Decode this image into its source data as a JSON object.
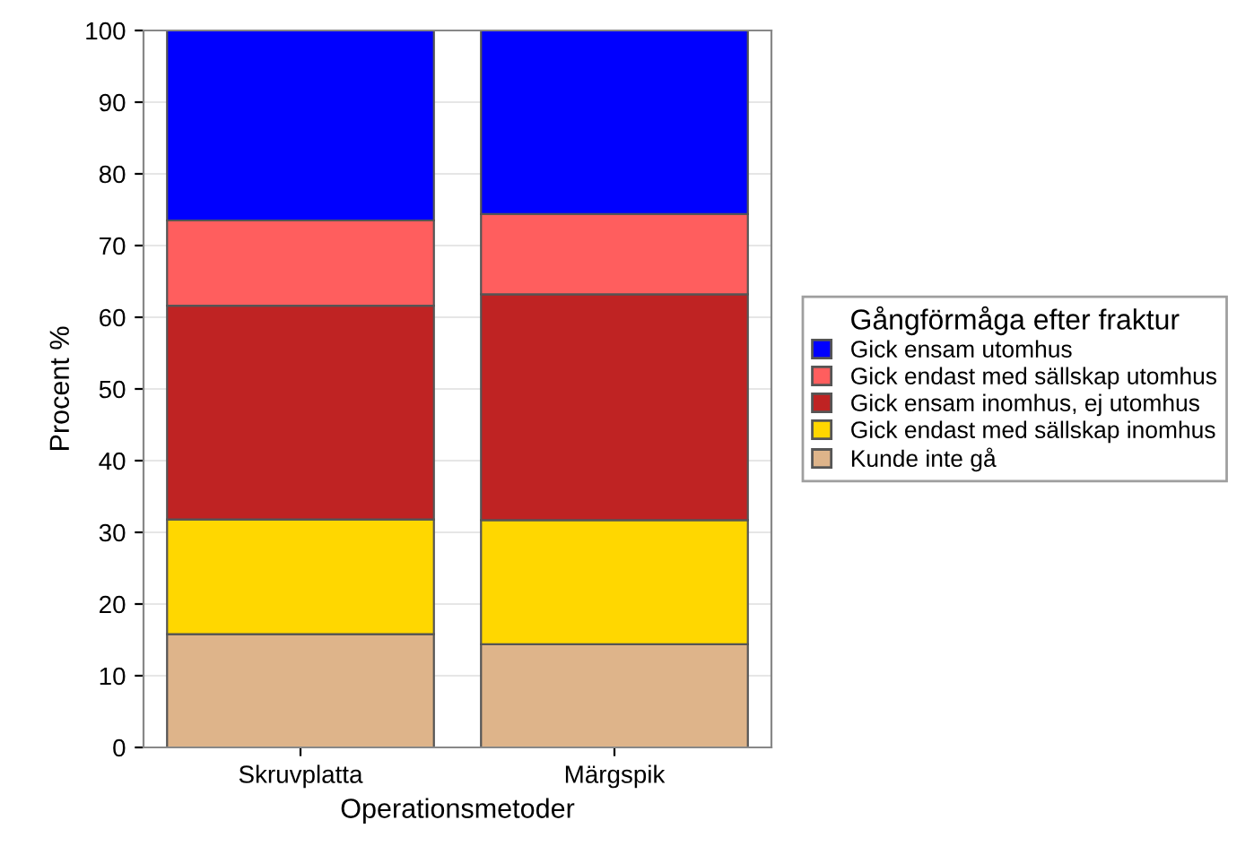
{
  "chart_data": {
    "type": "bar",
    "stacked": true,
    "xlabel": "Operationsmetoder",
    "ylabel": "Procent %",
    "legend_title": "Gångförmåga efter fraktur",
    "categories": [
      "Skruvplatta",
      "Märgspik"
    ],
    "series": [
      {
        "name": "Kunde inte gå",
        "color": "#deb48a",
        "values": [
          15.8,
          14.4
        ]
      },
      {
        "name": "Gick endast med sällskap inomhus",
        "color": "#ffd700",
        "values": [
          16.0,
          17.3
        ]
      },
      {
        "name": "Gick ensam inomhus, ej utomhus",
        "color": "#bf2323",
        "values": [
          29.8,
          31.5
        ]
      },
      {
        "name": "Gick endast med sällskap utomhus",
        "color": "#ff5e5e",
        "values": [
          11.9,
          11.2
        ]
      },
      {
        "name": "Gick ensam utomhus",
        "color": "#0000ff",
        "values": [
          26.5,
          25.6
        ]
      }
    ],
    "ylim": [
      0,
      100
    ],
    "yticks": [
      0,
      10,
      20,
      30,
      40,
      50,
      60,
      70,
      80,
      90,
      100
    ],
    "grid": "y",
    "legend": "right"
  }
}
